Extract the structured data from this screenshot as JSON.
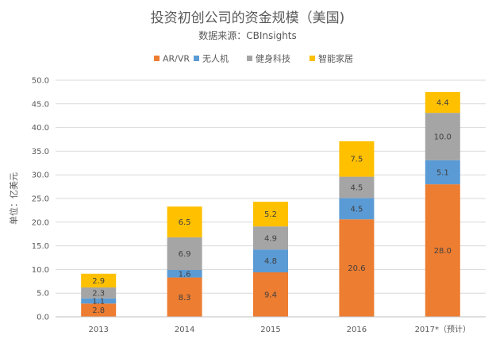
{
  "chart_data": {
    "type": "bar",
    "stacked": true,
    "title": "投资初创公司的资金规模（美国)",
    "subtitle": "数据来源：CBInsights",
    "xlabel": "",
    "ylabel": "单位：亿美元",
    "ylim": [
      0,
      50
    ],
    "yticks": [
      "0.0",
      "5.0",
      "10.0",
      "15.0",
      "20.0",
      "25.0",
      "30.0",
      "35.0",
      "40.0",
      "45.0",
      "50.0"
    ],
    "grid": true,
    "legend_position": "top",
    "categories": [
      "2013",
      "2014",
      "2015",
      "2016",
      "2017*（预计）"
    ],
    "series": [
      {
        "name": "AR/VR",
        "color": "#ED7D31",
        "values": [
          2.8,
          8.3,
          9.4,
          20.6,
          28.0
        ],
        "labels": [
          "2.8",
          "8.3",
          "9.4",
          "20.6",
          "28.0"
        ]
      },
      {
        "name": "无人机",
        "color": "#5B9BD5",
        "values": [
          1.1,
          1.6,
          4.8,
          4.5,
          5.1
        ],
        "labels": [
          "1.1",
          "1.6",
          "4.8",
          "4.5",
          "5.1"
        ]
      },
      {
        "name": "健身科技",
        "color": "#A5A5A5",
        "values": [
          2.3,
          6.9,
          4.9,
          4.5,
          10.0
        ],
        "labels": [
          "2.3",
          "6.9",
          "4.9",
          "4.5",
          "10.0"
        ]
      },
      {
        "name": "智能家居",
        "color": "#FFC000",
        "values": [
          2.9,
          6.5,
          5.2,
          7.5,
          4.4
        ],
        "labels": [
          "2.9",
          "6.5",
          "5.2",
          "7.5",
          "4.4"
        ]
      }
    ]
  }
}
